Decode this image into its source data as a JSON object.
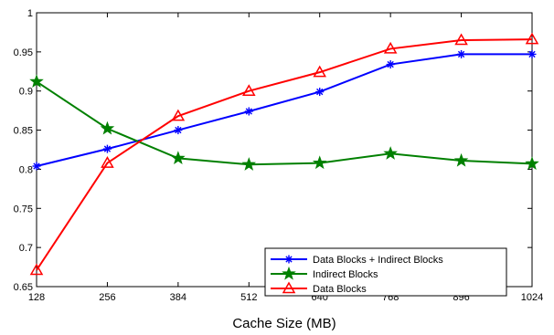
{
  "chart_data": {
    "type": "line",
    "title": "",
    "xlabel": "Cache Size (MB)",
    "ylabel": "",
    "x": [
      128,
      256,
      384,
      512,
      640,
      768,
      896,
      1024
    ],
    "xticks": [
      "128",
      "256",
      "384",
      "512",
      "640",
      "768",
      "896",
      "1024"
    ],
    "yticks": [
      "0.65",
      "0.7",
      "0.75",
      "0.8",
      "0.85",
      "0.9",
      "0.95",
      "1"
    ],
    "ylim": [
      0.65,
      1.0
    ],
    "grid": false,
    "legend_position": "bottom-right",
    "series": [
      {
        "name": "Data Blocks + Indirect Blocks",
        "color": "#0000ff",
        "marker": "asterisk",
        "values": [
          0.804,
          0.826,
          0.85,
          0.874,
          0.899,
          0.934,
          0.947,
          0.947
        ]
      },
      {
        "name": "Indirect Blocks",
        "color": "#008000",
        "marker": "star",
        "values": [
          0.912,
          0.852,
          0.814,
          0.806,
          0.808,
          0.82,
          0.811,
          0.807
        ]
      },
      {
        "name": "Data Blocks",
        "color": "#ff0000",
        "marker": "triangle",
        "values": [
          0.671,
          0.808,
          0.868,
          0.9,
          0.924,
          0.954,
          0.965,
          0.966
        ]
      }
    ]
  }
}
